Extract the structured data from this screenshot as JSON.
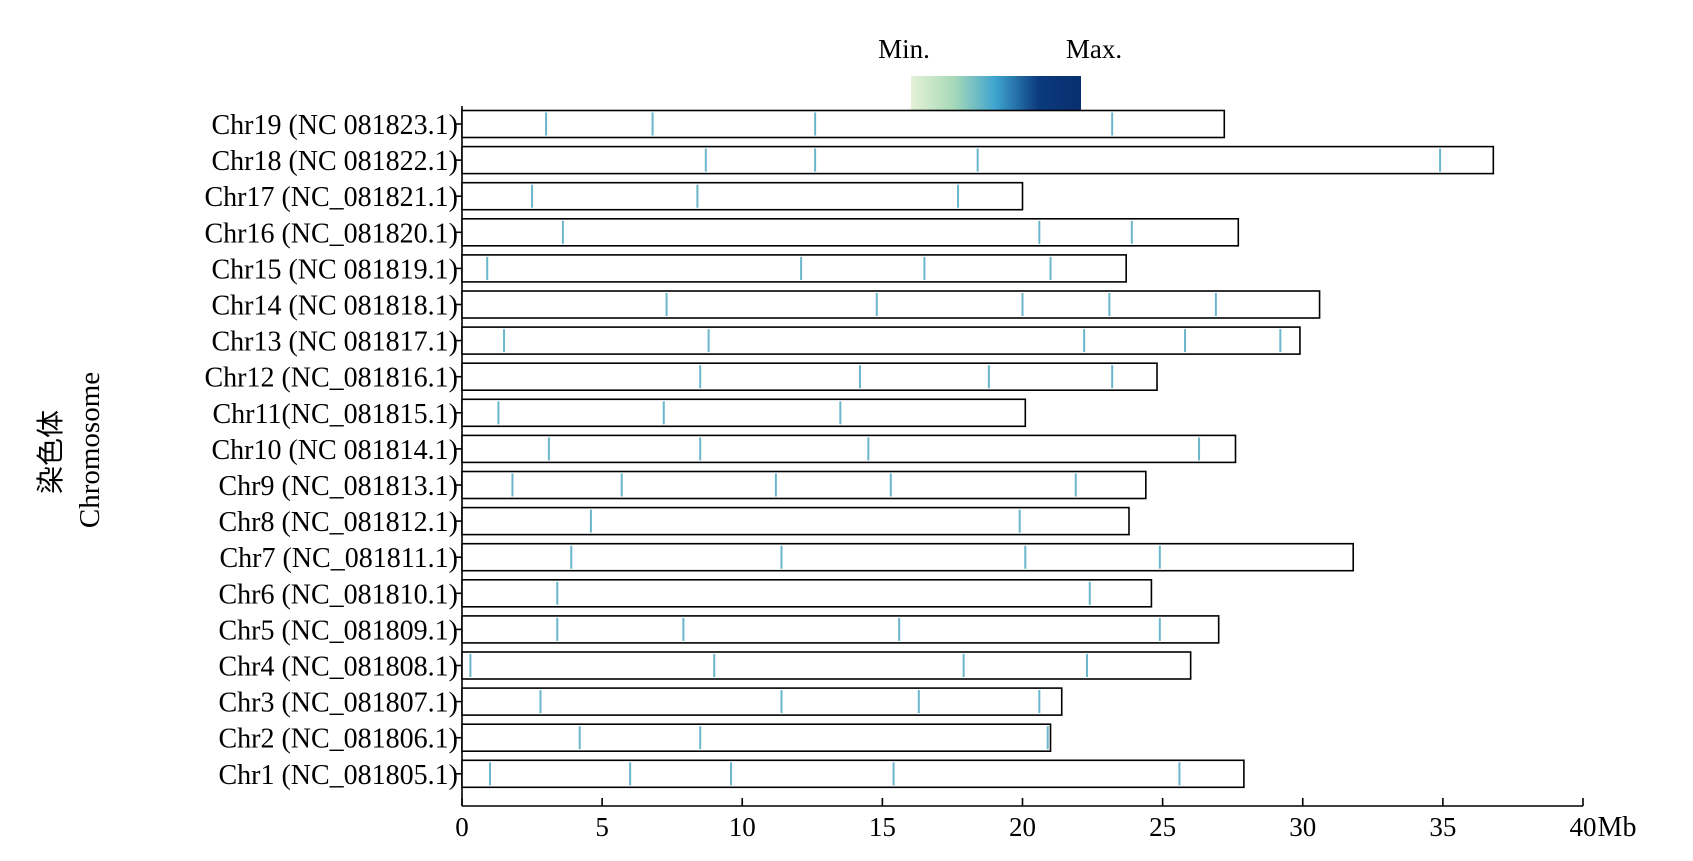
{
  "chart_data": {
    "type": "chromosome-map",
    "legend": {
      "min_label": "Min.",
      "max_label": "Max.",
      "gradient_colors": [
        "#e4f2d6",
        "#a8dab8",
        "#3ea3cf",
        "#0b3a7e",
        "#082f6e"
      ]
    },
    "ylabel_cn": "染色体",
    "ylabel_en": "Chromosome",
    "xlabel": "Mb",
    "xlim": [
      0,
      40
    ],
    "x_ticks": [
      0,
      5,
      10,
      15,
      20,
      25,
      30,
      35,
      40
    ],
    "x_tick_labels": [
      "0",
      "5",
      "10",
      "15",
      "20",
      "25",
      "30",
      "35",
      "40"
    ],
    "marker_color": "#6ab7cc",
    "chromosomes": [
      {
        "label": "Chr19 (NC 081823.1)",
        "length": 27.2,
        "markers": [
          3.0,
          6.8,
          12.6,
          23.2
        ]
      },
      {
        "label": "Chr18 (NC 081822.1)",
        "length": 36.8,
        "markers": [
          8.7,
          12.6,
          18.4,
          34.9
        ]
      },
      {
        "label": "Chr17 (NC_081821.1)",
        "length": 20.0,
        "markers": [
          2.5,
          8.4,
          17.7
        ]
      },
      {
        "label": "Chr16 (NC_081820.1)",
        "length": 27.7,
        "markers": [
          3.6,
          20.6,
          23.9
        ]
      },
      {
        "label": "Chr15 (NC 081819.1)",
        "length": 23.7,
        "markers": [
          0.9,
          12.1,
          16.5,
          21.0
        ]
      },
      {
        "label": "Chr14 (NC 081818.1)",
        "length": 30.6,
        "markers": [
          7.3,
          14.8,
          20.0,
          23.1,
          26.9
        ]
      },
      {
        "label": "Chr13 (NC 081817.1)",
        "length": 29.9,
        "markers": [
          1.5,
          8.8,
          22.2,
          25.8,
          29.2
        ]
      },
      {
        "label": "Chr12 (NC_081816.1)",
        "length": 24.8,
        "markers": [
          8.5,
          14.2,
          18.8,
          23.2
        ]
      },
      {
        "label": "Chr11(NC_081815.1)",
        "length": 20.1,
        "markers": [
          1.3,
          7.2,
          13.5
        ]
      },
      {
        "label": "Chr10 (NC 081814.1)",
        "length": 27.6,
        "markers": [
          3.1,
          8.5,
          14.5,
          26.3
        ]
      },
      {
        "label": "Chr9 (NC_081813.1)",
        "length": 24.4,
        "markers": [
          1.8,
          5.7,
          11.2,
          15.3,
          21.9
        ]
      },
      {
        "label": "Chr8 (NC_081812.1)",
        "length": 23.8,
        "markers": [
          4.6,
          19.9
        ]
      },
      {
        "label": "Chr7 (NC_081811.1)",
        "length": 31.8,
        "markers": [
          3.9,
          11.4,
          20.1,
          24.9
        ]
      },
      {
        "label": "Chr6 (NC_081810.1)",
        "length": 24.6,
        "markers": [
          3.4,
          22.4
        ]
      },
      {
        "label": "Chr5 (NC_081809.1)",
        "length": 27.0,
        "markers": [
          3.4,
          7.9,
          15.6,
          24.9
        ]
      },
      {
        "label": "Chr4 (NC_081808.1)",
        "length": 26.0,
        "markers": [
          0.3,
          9.0,
          17.9,
          22.3
        ]
      },
      {
        "label": "Chr3 (NC_081807.1)",
        "length": 21.4,
        "markers": [
          2.8,
          11.4,
          16.3,
          20.6
        ]
      },
      {
        "label": "Chr2 (NC_081806.1)",
        "length": 21.0,
        "markers": [
          4.2,
          8.5,
          20.9
        ]
      },
      {
        "label": "Chr1 (NC_081805.1)",
        "length": 27.9,
        "markers": [
          1.0,
          6.0,
          9.6,
          15.4,
          25.6
        ]
      }
    ]
  }
}
